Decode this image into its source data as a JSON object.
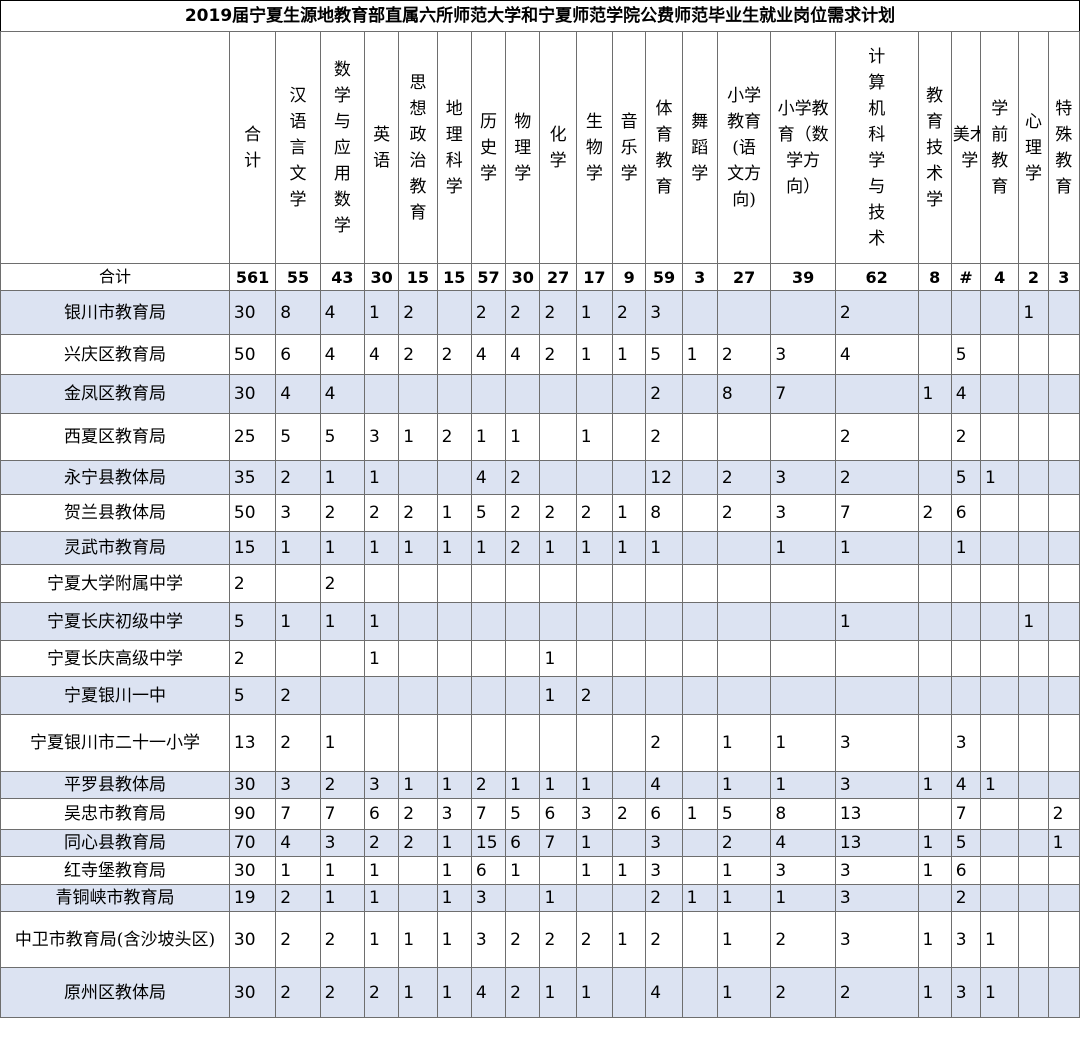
{
  "title": "2019届宁夏生源地教育部直属六所师范大学和宁夏师范学院公费师范毕业生就业岗位需求计划",
  "columns": [
    "合计",
    "汉语言文学",
    "数学与应用数学",
    "英语",
    "思想政治教育",
    "地理科学",
    "历史学",
    "物理学",
    "化学",
    "生物学",
    "音乐学",
    "体育教育",
    "舞蹈学",
    "小学教育(语文方向)",
    "小学教育（数学方向）",
    "计算机科学与技术",
    "教育技术学",
    "美术学",
    "学前教育",
    "心理学",
    "特殊教育"
  ],
  "total": {
    "label": "合计",
    "values": [
      "561",
      "55",
      "43",
      "30",
      "15",
      "15",
      "57",
      "30",
      "27",
      "17",
      "9",
      "59",
      "3",
      "27",
      "39",
      "62",
      "8",
      "#",
      "4",
      "2",
      "3"
    ]
  },
  "rows": [
    {
      "name": "银川市教育局",
      "values": [
        "30",
        "8",
        "4",
        "1",
        "2",
        "",
        "2",
        "2",
        "2",
        "1",
        "2",
        "3",
        "",
        "",
        "",
        "2",
        "",
        "",
        "",
        "1",
        ""
      ]
    },
    {
      "name": "兴庆区教育局",
      "values": [
        "50",
        "6",
        "4",
        "4",
        "2",
        "2",
        "4",
        "4",
        "2",
        "1",
        "1",
        "5",
        "1",
        "2",
        "3",
        "4",
        "",
        "5",
        "",
        "",
        ""
      ]
    },
    {
      "name": "金凤区教育局",
      "values": [
        "30",
        "4",
        "4",
        "",
        "",
        "",
        "",
        "",
        "",
        "",
        "",
        "2",
        "",
        "8",
        "7",
        "",
        "1",
        "4",
        "",
        "",
        ""
      ]
    },
    {
      "name": "西夏区教育局",
      "values": [
        "25",
        "5",
        "5",
        "3",
        "1",
        "2",
        "1",
        "1",
        "",
        "1",
        "",
        "2",
        "",
        "",
        "",
        "2",
        "",
        "2",
        "",
        "",
        ""
      ]
    },
    {
      "name": "永宁县教体局",
      "values": [
        "35",
        "2",
        "1",
        "1",
        "",
        "",
        "4",
        "2",
        "",
        "",
        "",
        "12",
        "",
        "2",
        "3",
        "2",
        "",
        "5",
        "1",
        "",
        ""
      ]
    },
    {
      "name": "贺兰县教体局",
      "values": [
        "50",
        "3",
        "2",
        "2",
        "2",
        "1",
        "5",
        "2",
        "2",
        "2",
        "1",
        "8",
        "",
        "2",
        "3",
        "7",
        "2",
        "6",
        "",
        "",
        ""
      ]
    },
    {
      "name": "灵武市教育局",
      "values": [
        "15",
        "1",
        "1",
        "1",
        "1",
        "1",
        "1",
        "2",
        "1",
        "1",
        "1",
        "1",
        "",
        "",
        "1",
        "1",
        "",
        "1",
        "",
        "",
        ""
      ]
    },
    {
      "name": "宁夏大学附属中学",
      "values": [
        "2",
        "",
        "2",
        "",
        "",
        "",
        "",
        "",
        "",
        "",
        "",
        "",
        "",
        "",
        "",
        "",
        "",
        "",
        "",
        "",
        ""
      ]
    },
    {
      "name": "宁夏长庆初级中学",
      "values": [
        "5",
        "1",
        "1",
        "1",
        "",
        "",
        "",
        "",
        "",
        "",
        "",
        "",
        "",
        "",
        "",
        "1",
        "",
        "",
        "",
        "1",
        ""
      ]
    },
    {
      "name": "宁夏长庆高级中学",
      "values": [
        "2",
        "",
        "",
        "1",
        "",
        "",
        "",
        "",
        "1",
        "",
        "",
        "",
        "",
        "",
        "",
        "",
        "",
        "",
        "",
        "",
        ""
      ]
    },
    {
      "name": "宁夏银川一中",
      "values": [
        "5",
        "2",
        "",
        "",
        "",
        "",
        "",
        "",
        "1",
        "2",
        "",
        "",
        "",
        "",
        "",
        "",
        "",
        "",
        "",
        "",
        ""
      ]
    },
    {
      "name": "宁夏银川市二十一小学",
      "values": [
        "13",
        "2",
        "1",
        "",
        "",
        "",
        "",
        "",
        "",
        "",
        "",
        "2",
        "",
        "1",
        "1",
        "3",
        "",
        "3",
        "",
        "",
        ""
      ]
    },
    {
      "name": "平罗县教体局",
      "values": [
        "30",
        "3",
        "2",
        "3",
        "1",
        "1",
        "2",
        "1",
        "1",
        "1",
        "",
        "4",
        "",
        "1",
        "1",
        "3",
        "1",
        "4",
        "1",
        "",
        ""
      ]
    },
    {
      "name": "吴忠市教育局",
      "values": [
        "90",
        "7",
        "7",
        "6",
        "2",
        "3",
        "7",
        "5",
        "6",
        "3",
        "2",
        "6",
        "1",
        "5",
        "8",
        "13",
        "",
        "7",
        "",
        "",
        "2"
      ]
    },
    {
      "name": "同心县教育局",
      "values": [
        "70",
        "4",
        "3",
        "2",
        "2",
        "1",
        "15",
        "6",
        "7",
        "1",
        "",
        "3",
        "",
        "2",
        "4",
        "13",
        "1",
        "5",
        "",
        "",
        "1"
      ]
    },
    {
      "name": "红寺堡教育局",
      "values": [
        "30",
        "1",
        "1",
        "1",
        "",
        "1",
        "6",
        "1",
        "",
        "1",
        "1",
        "3",
        "",
        "1",
        "3",
        "3",
        "1",
        "6",
        "",
        "",
        ""
      ]
    },
    {
      "name": "青铜峡市教育局",
      "values": [
        "19",
        "2",
        "1",
        "1",
        "",
        "1",
        "3",
        "",
        "1",
        "",
        "",
        "2",
        "1",
        "1",
        "1",
        "3",
        "",
        "2",
        "",
        "",
        ""
      ]
    },
    {
      "name": "中卫市教育局(含沙坡头区)",
      "values": [
        "30",
        "2",
        "2",
        "1",
        "1",
        "1",
        "3",
        "2",
        "2",
        "2",
        "1",
        "2",
        "",
        "1",
        "2",
        "3",
        "1",
        "3",
        "1",
        "",
        ""
      ]
    },
    {
      "name": "原州区教体局",
      "values": [
        "30",
        "2",
        "2",
        "2",
        "1",
        "1",
        "4",
        "2",
        "1",
        "1",
        "",
        "4",
        "",
        "1",
        "2",
        "2",
        "1",
        "3",
        "1",
        "",
        ""
      ]
    }
  ]
}
